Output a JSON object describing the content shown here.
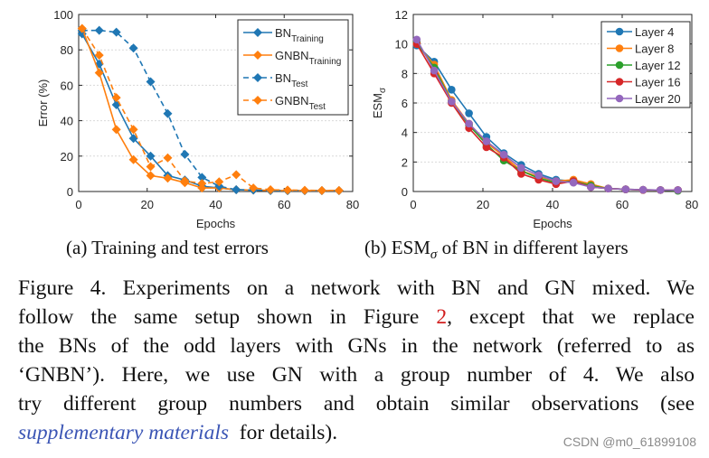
{
  "chart_data": [
    {
      "type": "line",
      "xlabel": "Epochs",
      "ylabel": "Error (%)",
      "xlim": [
        0,
        80
      ],
      "ylim": [
        0,
        100
      ],
      "xticks": [
        0,
        20,
        40,
        60,
        80
      ],
      "yticks": [
        0,
        20,
        40,
        60,
        80,
        100
      ],
      "grid": "horizontal dotted",
      "legend_placement": "top-right",
      "x": [
        1,
        6,
        11,
        16,
        21,
        26,
        31,
        36,
        41,
        46,
        51,
        56,
        61,
        66,
        71,
        76
      ],
      "series": [
        {
          "name": "BN",
          "sub": "Training",
          "color": "#1f77b4",
          "dash": false,
          "marker": "diamond",
          "values": [
            89,
            72,
            49,
            30,
            20,
            9,
            6.5,
            3,
            2,
            1,
            0.8,
            0.6,
            0.5,
            0.5,
            0.5,
            0.5
          ]
        },
        {
          "name": "GNBN",
          "sub": "Training",
          "color": "#ff7f0e",
          "dash": false,
          "marker": "diamond",
          "values": [
            92,
            67,
            35,
            18,
            9,
            7.5,
            5,
            2,
            2,
            1,
            0.8,
            0.6,
            0.5,
            0.5,
            0.5,
            0.5
          ]
        },
        {
          "name": "BN",
          "sub": "Test",
          "color": "#1f77b4",
          "dash": true,
          "marker": "diamond",
          "values": [
            91,
            91,
            90,
            81,
            62,
            44,
            21,
            8,
            3,
            1,
            0.8,
            0.6,
            0.5,
            0.5,
            0.5,
            0.5
          ]
        },
        {
          "name": "GNBN",
          "sub": "Test",
          "color": "#ff7f0e",
          "dash": true,
          "marker": "diamond",
          "values": [
            92,
            77,
            53,
            35,
            14,
            19,
            6,
            4.5,
            5.5,
            9.5,
            2,
            1,
            0.8,
            0.7,
            0.6,
            0.6
          ]
        }
      ]
    },
    {
      "type": "line",
      "xlabel": "Epochs",
      "ylabel": "ESM",
      "ylabel_sub": "σ",
      "xlim": [
        0,
        80
      ],
      "ylim": [
        0,
        12
      ],
      "xticks": [
        0,
        20,
        40,
        60,
        80
      ],
      "yticks": [
        0,
        2,
        4,
        6,
        8,
        10,
        12
      ],
      "grid": "horizontal dotted",
      "legend_placement": "top-right",
      "x": [
        1,
        6,
        11,
        16,
        21,
        26,
        31,
        36,
        41,
        46,
        51,
        56,
        61,
        66,
        71,
        76
      ],
      "series": [
        {
          "name": "Layer 4",
          "color": "#1f77b4",
          "marker": "circle",
          "values": [
            9.9,
            8.8,
            6.9,
            5.3,
            3.7,
            2.6,
            1.8,
            1.2,
            0.8,
            0.7,
            0.4,
            0.2,
            0.15,
            0.12,
            0.1,
            0.1
          ]
        },
        {
          "name": "Layer 8",
          "color": "#ff7f0e",
          "marker": "circle",
          "values": [
            10.0,
            8.6,
            6.2,
            4.6,
            3.3,
            2.4,
            1.4,
            1.0,
            0.7,
            0.8,
            0.5,
            0.2,
            0.15,
            0.12,
            0.1,
            0.1
          ]
        },
        {
          "name": "Layer 12",
          "color": "#2ca02c",
          "marker": "circle",
          "values": [
            10.1,
            8.4,
            6.1,
            4.5,
            3.2,
            2.1,
            1.4,
            0.9,
            0.6,
            0.7,
            0.4,
            0.2,
            0.15,
            0.1,
            0.1,
            0.05
          ]
        },
        {
          "name": "Layer 16",
          "color": "#d62728",
          "marker": "circle",
          "values": [
            10.0,
            8.0,
            6.0,
            4.3,
            3.0,
            2.3,
            1.2,
            0.8,
            0.5,
            0.7,
            0.3,
            0.2,
            0.15,
            0.1,
            0.1,
            0.1
          ]
        },
        {
          "name": "Layer 20",
          "color": "#9467bd",
          "marker": "circle",
          "values": [
            10.3,
            8.2,
            6.1,
            4.6,
            3.4,
            2.5,
            1.6,
            1.1,
            0.7,
            0.6,
            0.3,
            0.2,
            0.15,
            0.12,
            0.1,
            0.1
          ]
        }
      ]
    }
  ],
  "subcaptions": {
    "a": "(a) Training and test errors",
    "b_pre": "(b) ESM",
    "b_sub": "σ",
    "b_post": " of BN in different layers"
  },
  "caption": {
    "line1": "Figure 4. Experiments on a network with BN and GN mixed. We",
    "line2_pre": "follow the same setup shown in Figure ",
    "line2_ref": "2",
    "line2_post": ", except that we replace",
    "line3": "the BNs of the odd layers with GNs in the network (referred to as",
    "line4": "‘GNBN’). Here, we use GN with a group number of 4. We also",
    "line5": "try different group numbers and obtain similar observations (see",
    "line6_link": "supplementary materials",
    "line6_post": "  for details)."
  },
  "watermark": "CSDN @m0_61899108"
}
